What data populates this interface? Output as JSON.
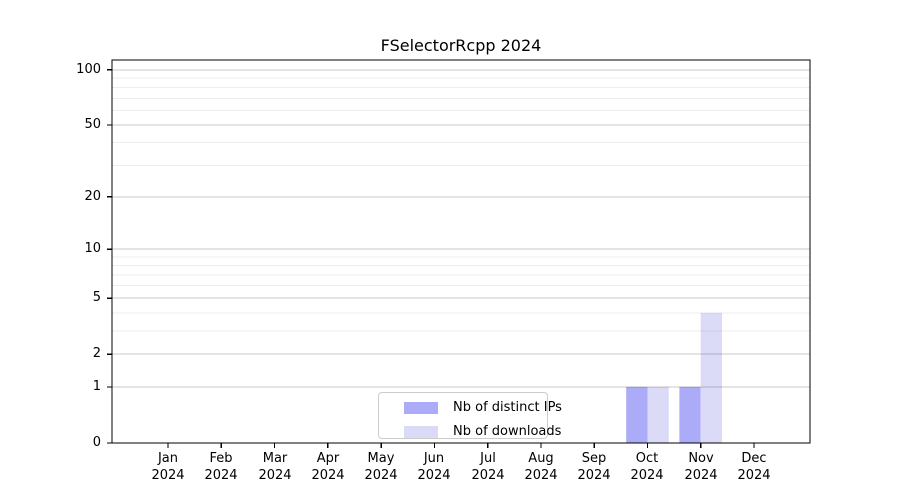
{
  "title": "FSelectorRcpp 2024",
  "legend": {
    "items": [
      {
        "label": "Nb of distinct IPs"
      },
      {
        "label": "Nb of downloads"
      }
    ]
  },
  "chart_data": {
    "type": "bar",
    "title": "FSelectorRcpp 2024",
    "categories": [
      "Jan 2024",
      "Feb 2024",
      "Mar 2024",
      "Apr 2024",
      "May 2024",
      "Jun 2024",
      "Jul 2024",
      "Aug 2024",
      "Sep 2024",
      "Oct 2024",
      "Nov 2024",
      "Dec 2024"
    ],
    "series": [
      {
        "name": "Nb of distinct IPs",
        "color": "#ababf8",
        "values": [
          0,
          0,
          0,
          0,
          0,
          0,
          0,
          0,
          0,
          1,
          1,
          0
        ]
      },
      {
        "name": "Nb of downloads",
        "color": "#dbdbf8",
        "values": [
          0,
          0,
          0,
          0,
          0,
          0,
          0,
          0,
          0,
          1,
          4,
          0
        ]
      }
    ],
    "xlabel": "",
    "ylabel": "",
    "yscale": "log1p",
    "ylim": [
      0,
      113
    ],
    "y_ticks": [
      0,
      1,
      2,
      5,
      10,
      20,
      50,
      100
    ],
    "y_minor_gridlines": [
      3,
      4,
      6,
      7,
      8,
      9,
      30,
      40,
      60,
      70,
      80,
      90
    ],
    "grid": "horizontal",
    "grid_major_color": "rgba(0,0,0,0.21)",
    "grid_minor_color": "rgba(0,0,0,0.07)",
    "legend_position": "inside-bottom-center",
    "legend_entries": [
      "Nb of distinct IPs",
      "Nb of downloads"
    ]
  }
}
